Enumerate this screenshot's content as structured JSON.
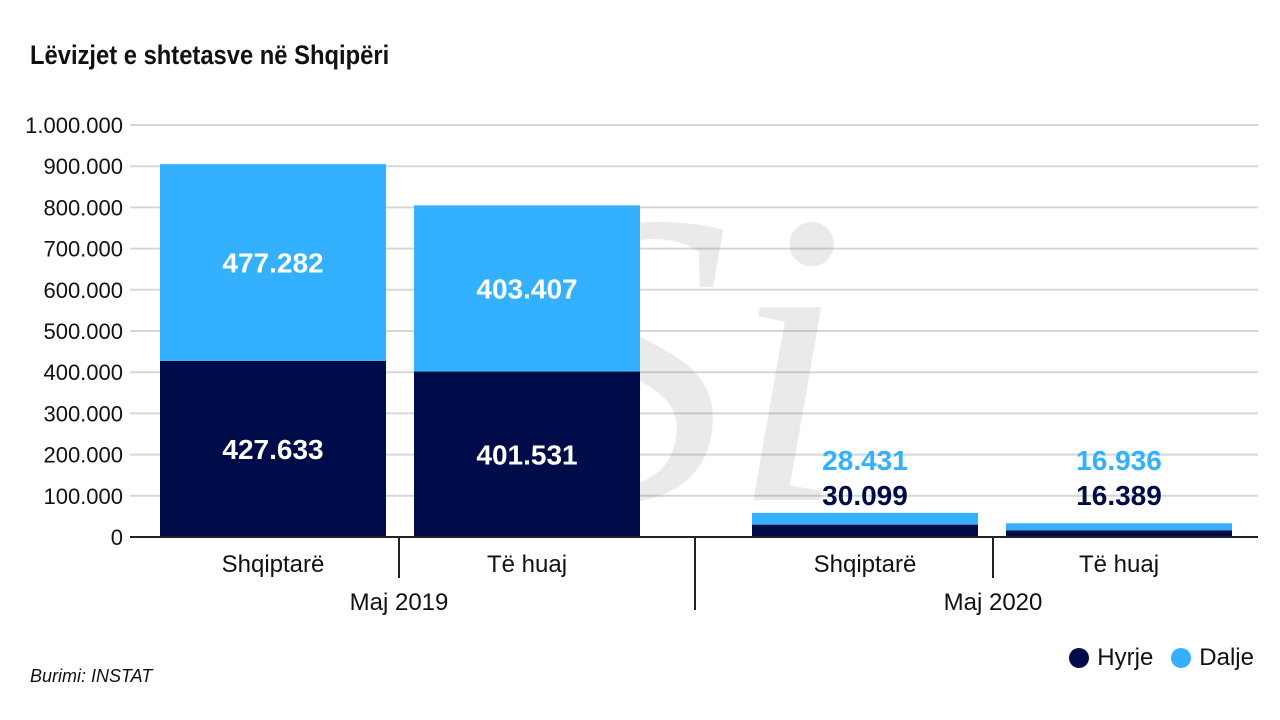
{
  "title": "Lëvizjet e shtetasve në Shqipëri",
  "source": "Burimi: INSTAT",
  "chart_data": {
    "type": "bar",
    "stacked": true,
    "title": "Lëvizjet e shtetasve në Shqipëri",
    "groups": [
      "Maj 2019",
      "Maj 2020"
    ],
    "categories": [
      "Shqiptarë",
      "Të huaj",
      "Shqiptarë",
      "Të huaj"
    ],
    "category_group": [
      0,
      0,
      1,
      1
    ],
    "series": [
      {
        "name": "Hyrje",
        "color": "#000c4a",
        "values": [
          427633,
          401531,
          30099,
          16389
        ],
        "labels": [
          "427.633",
          "401.531",
          "30.099",
          "16.389"
        ]
      },
      {
        "name": "Dalje",
        "color": "#33b1ff",
        "values": [
          477282,
          403407,
          28431,
          16936
        ],
        "labels": [
          "477.282",
          "403.407",
          "28.431",
          "16.936"
        ]
      }
    ],
    "ylim": [
      0,
      1000000
    ],
    "yticks": [
      0,
      100000,
      200000,
      300000,
      400000,
      500000,
      600000,
      700000,
      800000,
      900000,
      1000000
    ],
    "ytick_labels": [
      "0",
      "100.000",
      "200.000",
      "300.000",
      "400.000",
      "500.000",
      "600.000",
      "700.000",
      "800.000",
      "900.000",
      "1.000.000"
    ],
    "grid": true,
    "legend": "bottom-right",
    "xlabel": "",
    "ylabel": ""
  }
}
